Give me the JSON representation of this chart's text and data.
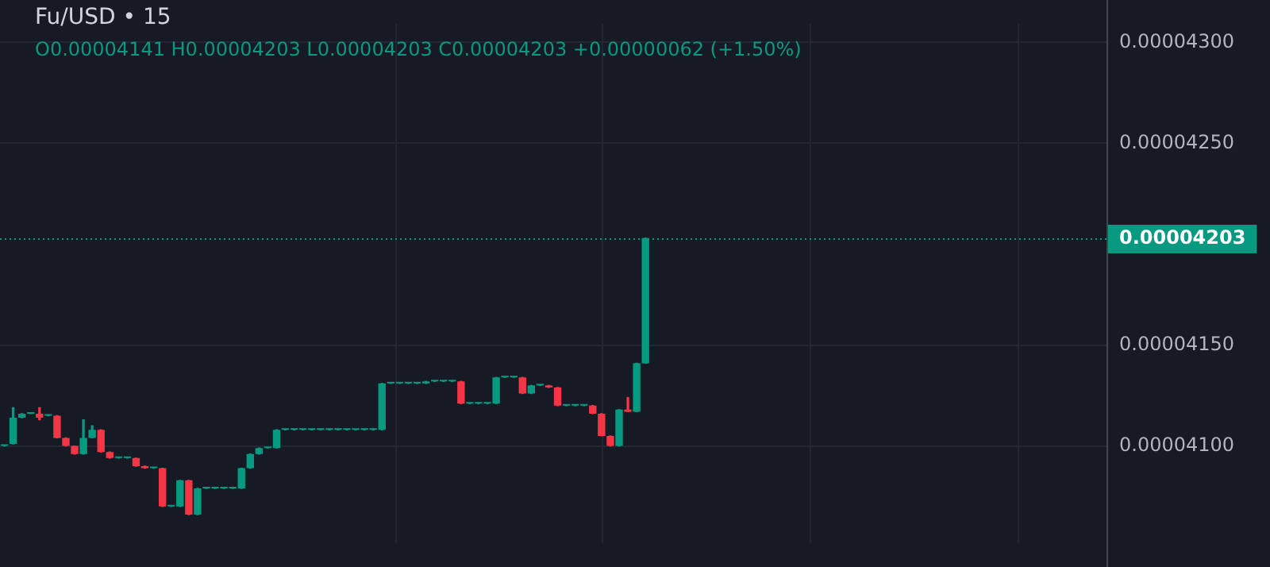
{
  "chart_data": {
    "type": "candlestick",
    "title": "Fu/USD • 15",
    "subtitle": "O0.00004141 H0.00004203 L0.00004203 C0.00004203 +0.00000062 (+1.50%)",
    "categories": [
      null,
      null,
      null,
      null,
      null,
      null,
      null,
      null,
      null,
      null,
      null,
      null,
      null,
      null,
      null,
      null,
      null,
      null,
      null,
      null,
      null,
      null,
      null,
      null,
      null,
      null,
      null,
      null,
      null,
      null,
      null,
      null,
      null,
      null,
      null,
      null,
      null,
      null,
      null,
      null,
      null,
      null,
      null,
      null,
      null,
      null,
      null,
      null,
      null,
      null,
      null,
      null,
      null,
      null,
      null,
      null,
      null,
      null,
      null,
      null,
      null,
      null,
      null,
      null,
      null,
      null,
      null,
      null,
      null,
      null,
      null,
      null,
      null,
      null,
      null,
      null,
      null,
      null,
      null,
      null,
      null,
      null,
      null,
      null,
      null,
      null,
      null,
      null,
      null,
      null,
      null,
      null,
      null,
      null,
      null,
      null,
      null,
      null,
      null,
      null,
      null,
      null,
      null,
      null,
      null,
      null,
      null,
      null,
      null,
      null,
      null,
      null,
      null,
      null,
      null,
      null,
      null,
      null,
      null,
      null,
      null,
      null,
      null,
      null,
      null,
      null
    ],
    "ohlc": [
      [
        4.1e-05,
        4.1e-05,
        4.1e-05,
        4.1e-05
      ],
      [
        4.101e-05,
        4.119e-05,
        4.101e-05,
        4.114e-05
      ],
      [
        4.114e-05,
        4.116e-05,
        4.114e-05,
        4.116e-05
      ],
      [
        4.116e-05,
        4.116e-05,
        4.116e-05,
        4.116e-05
      ],
      [
        4.116e-05,
        4.119e-05,
        4.113e-05,
        4.114e-05
      ],
      [
        4.115e-05,
        4.115e-05,
        4.115e-05,
        4.115e-05
      ],
      [
        4.115e-05,
        4.115e-05,
        4.104e-05,
        4.104e-05
      ],
      [
        4.104e-05,
        4.104e-05,
        4.1e-05,
        4.1e-05
      ],
      [
        4.1e-05,
        4.1e-05,
        4.096e-05,
        4.096e-05
      ],
      [
        4.096e-05,
        4.113e-05,
        4.096e-05,
        4.104e-05
      ],
      [
        4.104e-05,
        4.11e-05,
        4.104e-05,
        4.108e-05
      ],
      [
        4.108e-05,
        4.108e-05,
        4.097e-05,
        4.097e-05
      ],
      [
        4.097e-05,
        4.097e-05,
        4.094e-05,
        4.094e-05
      ],
      [
        4.094e-05,
        4.094e-05,
        4.094e-05,
        4.094e-05
      ],
      [
        4.094e-05,
        4.094e-05,
        4.094e-05,
        4.094e-05
      ],
      [
        4.094e-05,
        4.094e-05,
        4.09e-05,
        4.09e-05
      ],
      [
        4.09e-05,
        4.09e-05,
        4.089e-05,
        4.089e-05
      ],
      [
        4.089e-05,
        4.089e-05,
        4.089e-05,
        4.089e-05
      ],
      [
        4.089e-05,
        4.089e-05,
        4.07e-05,
        4.07e-05
      ],
      [
        4.07e-05,
        4.07e-05,
        4.07e-05,
        4.07e-05
      ],
      [
        4.07e-05,
        4.083e-05,
        4.07e-05,
        4.083e-05
      ],
      [
        4.083e-05,
        4.083e-05,
        4.066e-05,
        4.066e-05
      ],
      [
        4.066e-05,
        4.079e-05,
        4.066e-05,
        4.079e-05
      ],
      [
        4.079e-05,
        4.079e-05,
        4.079e-05,
        4.079e-05
      ],
      [
        4.079e-05,
        4.079e-05,
        4.079e-05,
        4.079e-05
      ],
      [
        4.079e-05,
        4.079e-05,
        4.079e-05,
        4.079e-05
      ],
      [
        4.079e-05,
        4.079e-05,
        4.079e-05,
        4.079e-05
      ],
      [
        4.079e-05,
        4.089e-05,
        4.079e-05,
        4.089e-05
      ],
      [
        4.089e-05,
        4.096e-05,
        4.089e-05,
        4.096e-05
      ],
      [
        4.096e-05,
        4.099e-05,
        4.096e-05,
        4.099e-05
      ],
      [
        4.099e-05,
        4.099e-05,
        4.099e-05,
        4.099e-05
      ],
      [
        4.099e-05,
        4.108e-05,
        4.099e-05,
        4.108e-05
      ],
      [
        4.108e-05,
        4.108e-05,
        4.108e-05,
        4.108e-05
      ],
      [
        4.108e-05,
        4.108e-05,
        4.108e-05,
        4.108e-05
      ],
      [
        4.108e-05,
        4.108e-05,
        4.108e-05,
        4.108e-05
      ],
      [
        4.108e-05,
        4.108e-05,
        4.108e-05,
        4.108e-05
      ],
      [
        4.108e-05,
        4.108e-05,
        4.108e-05,
        4.108e-05
      ],
      [
        4.108e-05,
        4.108e-05,
        4.108e-05,
        4.108e-05
      ],
      [
        4.108e-05,
        4.108e-05,
        4.108e-05,
        4.108e-05
      ],
      [
        4.108e-05,
        4.108e-05,
        4.108e-05,
        4.108e-05
      ],
      [
        4.108e-05,
        4.108e-05,
        4.108e-05,
        4.108e-05
      ],
      [
        4.108e-05,
        4.108e-05,
        4.108e-05,
        4.108e-05
      ],
      [
        4.108e-05,
        4.108e-05,
        4.108e-05,
        4.108e-05
      ],
      [
        4.108e-05,
        4.131e-05,
        4.108e-05,
        4.131e-05
      ],
      [
        4.131e-05,
        4.131e-05,
        4.131e-05,
        4.131e-05
      ],
      [
        4.131e-05,
        4.131e-05,
        4.131e-05,
        4.131e-05
      ],
      [
        4.131e-05,
        4.131e-05,
        4.131e-05,
        4.131e-05
      ],
      [
        4.131e-05,
        4.131e-05,
        4.131e-05,
        4.131e-05
      ],
      [
        4.131e-05,
        4.132e-05,
        4.131e-05,
        4.132e-05
      ],
      [
        4.132e-05,
        4.132e-05,
        4.132e-05,
        4.132e-05
      ],
      [
        4.132e-05,
        4.132e-05,
        4.132e-05,
        4.132e-05
      ],
      [
        4.132e-05,
        4.132e-05,
        4.132e-05,
        4.132e-05
      ],
      [
        4.132e-05,
        4.132e-05,
        4.121e-05,
        4.121e-05
      ],
      [
        4.121e-05,
        4.121e-05,
        4.121e-05,
        4.121e-05
      ],
      [
        4.121e-05,
        4.121e-05,
        4.121e-05,
        4.121e-05
      ],
      [
        4.121e-05,
        4.121e-05,
        4.121e-05,
        4.121e-05
      ],
      [
        4.121e-05,
        4.134e-05,
        4.121e-05,
        4.134e-05
      ],
      [
        4.134e-05,
        4.134e-05,
        4.134e-05,
        4.134e-05
      ],
      [
        4.134e-05,
        4.134e-05,
        4.134e-05,
        4.134e-05
      ],
      [
        4.134e-05,
        4.134e-05,
        4.126e-05,
        4.126e-05
      ],
      [
        4.126e-05,
        4.13e-05,
        4.126e-05,
        4.13e-05
      ],
      [
        4.13e-05,
        4.13e-05,
        4.13e-05,
        4.13e-05
      ],
      [
        4.13e-05,
        4.13e-05,
        4.129e-05,
        4.129e-05
      ],
      [
        4.129e-05,
        4.129e-05,
        4.12e-05,
        4.12e-05
      ],
      [
        4.12e-05,
        4.12e-05,
        4.12e-05,
        4.12e-05
      ],
      [
        4.12e-05,
        4.12e-05,
        4.12e-05,
        4.12e-05
      ],
      [
        4.12e-05,
        4.12e-05,
        4.12e-05,
        4.12e-05
      ],
      [
        4.12e-05,
        4.12e-05,
        4.116e-05,
        4.116e-05
      ],
      [
        4.116e-05,
        4.116e-05,
        4.105e-05,
        4.105e-05
      ],
      [
        4.105e-05,
        4.105e-05,
        4.1e-05,
        4.1e-05
      ],
      [
        4.1e-05,
        4.118e-05,
        4.1e-05,
        4.118e-05
      ],
      [
        4.118e-05,
        4.124e-05,
        4.117e-05,
        4.117e-05
      ],
      [
        4.117e-05,
        4.141e-05,
        4.117e-05,
        4.141e-05
      ],
      [
        4.141e-05,
        4.203e-05,
        4.141e-05,
        4.203e-05
      ],
      null,
      null,
      null,
      null,
      null,
      null,
      null,
      null,
      null,
      null,
      null,
      null,
      null,
      null,
      null,
      null,
      null,
      null,
      null,
      null,
      null,
      null,
      null,
      null,
      null,
      null,
      null,
      null,
      null,
      null,
      null,
      null,
      null,
      null,
      null,
      null,
      null,
      null,
      null,
      null,
      null,
      null,
      null,
      null,
      null,
      null,
      null,
      null,
      null,
      null,
      null,
      null
    ],
    "ylim": [
      4.052e-05,
      4.309e-05
    ],
    "yticks": [
      {
        "value": 4.1e-05,
        "label": "0.00004100"
      },
      {
        "value": 4.15e-05,
        "label": "0.00004150"
      },
      {
        "value": 4.25e-05,
        "label": "0.00004250"
      },
      {
        "value": 4.3e-05,
        "label": "0.00004300"
      }
    ],
    "ref_lines": [
      {
        "axis": "y",
        "value": 4.203e-05,
        "label": "0.00004203",
        "color": "#089981",
        "line_style": "dotted"
      }
    ],
    "grid": true,
    "legend": false
  }
}
